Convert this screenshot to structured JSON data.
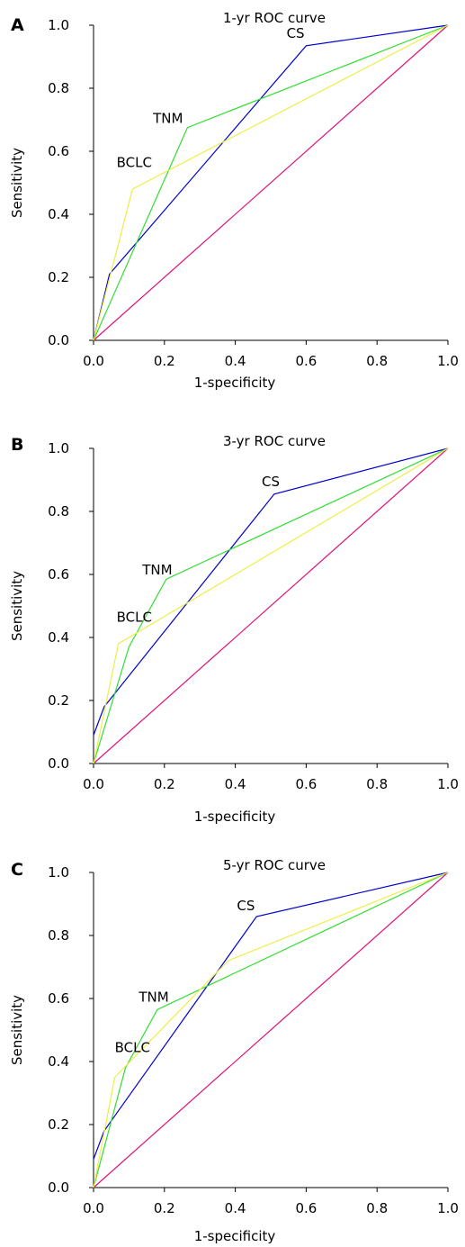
{
  "chart_data": [
    {
      "type": "line",
      "panel": "A",
      "title": "1-yr ROC curve",
      "xlabel": "1-specificity",
      "ylabel": "Sensitivity",
      "xlim": [
        0,
        1
      ],
      "ylim": [
        0,
        1
      ],
      "xticks": [
        "0.0",
        "0.2",
        "0.4",
        "0.6",
        "0.8",
        "1.0"
      ],
      "yticks": [
        "0.0",
        "0.2",
        "0.4",
        "0.6",
        "0.8",
        "1.0"
      ],
      "series": [
        {
          "name": "CS",
          "color": "#0000cc",
          "points": [
            [
              0,
              0
            ],
            [
              0.045,
              0.21
            ],
            [
              0.6,
              0.935
            ],
            [
              1,
              1
            ]
          ]
        },
        {
          "name": "TNM",
          "color": "#33dd33",
          "points": [
            [
              0,
              0
            ],
            [
              0.265,
              0.675
            ],
            [
              1,
              1
            ]
          ]
        },
        {
          "name": "BCLC",
          "color": "#eeee44",
          "points": [
            [
              0,
              0
            ],
            [
              0.11,
              0.48
            ],
            [
              1,
              1
            ]
          ]
        },
        {
          "name": "",
          "color": "#dd1177",
          "points": [
            [
              0,
              0
            ],
            [
              1,
              1
            ]
          ]
        }
      ],
      "labels": [
        {
          "text": "CS",
          "x": 0.57,
          "y": 0.96
        },
        {
          "text": "TNM",
          "x": 0.21,
          "y": 0.69
        },
        {
          "text": "BCLC",
          "x": 0.115,
          "y": 0.55
        }
      ]
    },
    {
      "type": "line",
      "panel": "B",
      "title": "3-yr ROC curve",
      "xlabel": "1-specificity",
      "ylabel": "Sensitivity",
      "xlim": [
        0,
        1
      ],
      "ylim": [
        0,
        1
      ],
      "xticks": [
        "0.0",
        "0.2",
        "0.4",
        "0.6",
        "0.8",
        "1.0"
      ],
      "yticks": [
        "0.0",
        "0.2",
        "0.4",
        "0.6",
        "0.8",
        "1.0"
      ],
      "series": [
        {
          "name": "CS",
          "color": "#0000cc",
          "points": [
            [
              0,
              0.09
            ],
            [
              0.03,
              0.18
            ],
            [
              0.51,
              0.855
            ],
            [
              1,
              1
            ]
          ]
        },
        {
          "name": "TNM",
          "color": "#33dd33",
          "points": [
            [
              0,
              0
            ],
            [
              0.1,
              0.37
            ],
            [
              0.205,
              0.585
            ],
            [
              1,
              1
            ]
          ]
        },
        {
          "name": "BCLC",
          "color": "#eeee44",
          "points": [
            [
              0,
              0
            ],
            [
              0.07,
              0.38
            ],
            [
              1,
              1
            ]
          ]
        },
        {
          "name": "",
          "color": "#dd1177",
          "points": [
            [
              0,
              0
            ],
            [
              1,
              1
            ]
          ]
        }
      ],
      "labels": [
        {
          "text": "CS",
          "x": 0.5,
          "y": 0.88
        },
        {
          "text": "TNM",
          "x": 0.18,
          "y": 0.6
        },
        {
          "text": "BCLC",
          "x": 0.115,
          "y": 0.45
        }
      ]
    },
    {
      "type": "line",
      "panel": "C",
      "title": "5-yr ROC curve",
      "xlabel": "1-specificity",
      "ylabel": "Sensitivity",
      "xlim": [
        0,
        1
      ],
      "ylim": [
        0,
        1
      ],
      "xticks": [
        "0.0",
        "0.2",
        "0.4",
        "0.6",
        "0.8",
        "1.0"
      ],
      "yticks": [
        "0.0",
        "0.2",
        "0.4",
        "0.6",
        "0.8",
        "1.0"
      ],
      "series": [
        {
          "name": "CS",
          "color": "#0000cc",
          "points": [
            [
              0,
              0.09
            ],
            [
              0.03,
              0.18
            ],
            [
              0.46,
              0.86
            ],
            [
              1,
              1
            ]
          ]
        },
        {
          "name": "TNM",
          "color": "#33dd33",
          "points": [
            [
              0,
              0
            ],
            [
              0.09,
              0.38
            ],
            [
              0.18,
              0.565
            ],
            [
              1,
              1
            ]
          ]
        },
        {
          "name": "BCLC",
          "color": "#eeee44",
          "points": [
            [
              0,
              0
            ],
            [
              0.06,
              0.35
            ],
            [
              0.38,
              0.72
            ],
            [
              1,
              1
            ]
          ]
        },
        {
          "name": "",
          "color": "#dd1177",
          "points": [
            [
              0,
              0
            ],
            [
              1,
              1
            ]
          ]
        }
      ],
      "labels": [
        {
          "text": "CS",
          "x": 0.43,
          "y": 0.88
        },
        {
          "text": "TNM",
          "x": 0.17,
          "y": 0.59
        },
        {
          "text": "BCLC",
          "x": 0.11,
          "y": 0.43
        }
      ]
    }
  ]
}
